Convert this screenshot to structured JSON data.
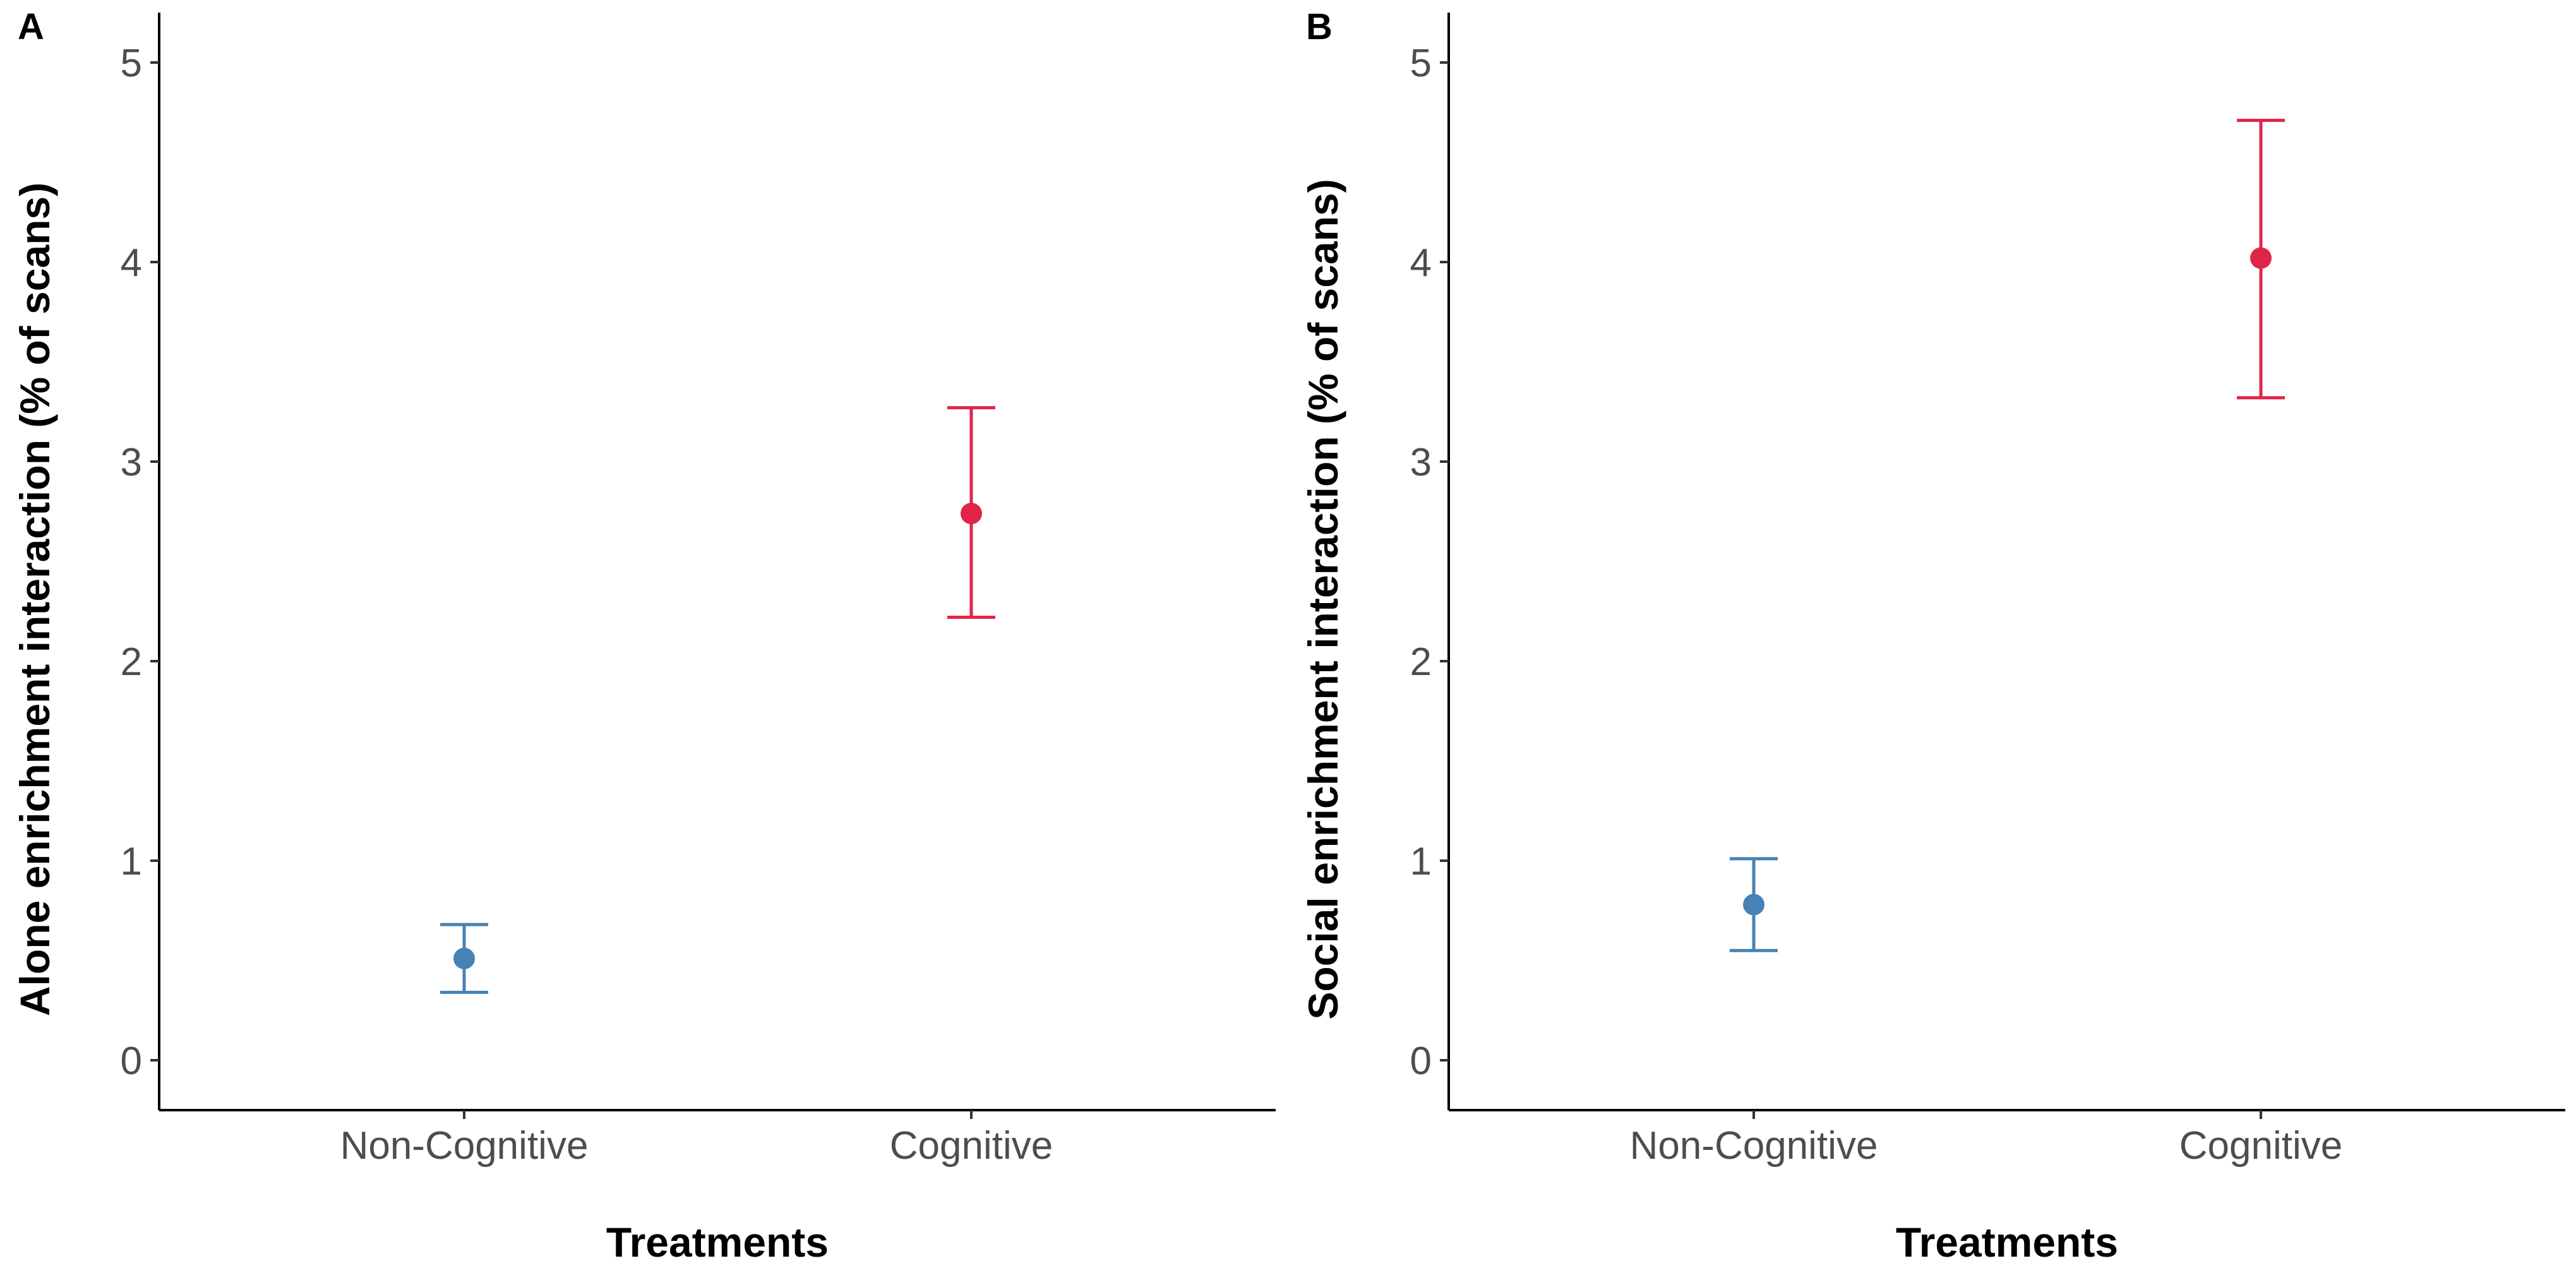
{
  "chart_data": [
    {
      "type": "scatter",
      "panel_label": "A",
      "title": "",
      "xlabel": "Treatments",
      "ylabel": "Alone enrichment interaction (% of scans)",
      "categories": [
        "Non-Cognitive",
        "Cognitive"
      ],
      "ylim": [
        0,
        5
      ],
      "yticks": [
        "0",
        "1",
        "2",
        "3",
        "4",
        "5"
      ],
      "grid": false,
      "legend": "none",
      "points": [
        {
          "category": "Non-Cognitive",
          "y": 0.51,
          "lower": 0.34,
          "upper": 0.68,
          "color": "#4682b4"
        },
        {
          "category": "Cognitive",
          "y": 2.74,
          "lower": 2.22,
          "upper": 3.27,
          "color": "#e0254a"
        }
      ]
    },
    {
      "type": "scatter",
      "panel_label": "B",
      "title": "",
      "xlabel": "Treatments",
      "ylabel": "Social enrichment interaction (% of scans)",
      "categories": [
        "Non-Cognitive",
        "Cognitive"
      ],
      "ylim": [
        0,
        5
      ],
      "yticks": [
        "0",
        "1",
        "2",
        "3",
        "4",
        "5"
      ],
      "grid": false,
      "legend": "none",
      "points": [
        {
          "category": "Non-Cognitive",
          "y": 0.78,
          "lower": 0.55,
          "upper": 1.01,
          "color": "#4682b4"
        },
        {
          "category": "Cognitive",
          "y": 4.02,
          "lower": 3.32,
          "upper": 4.71,
          "color": "#e0254a"
        }
      ]
    }
  ]
}
